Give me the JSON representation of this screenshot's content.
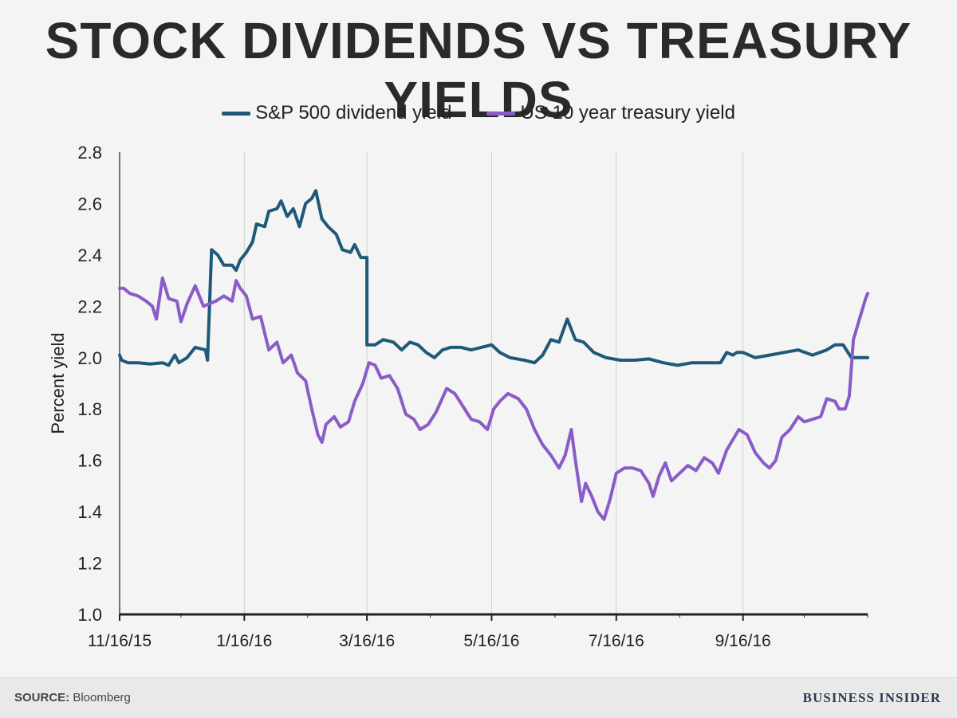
{
  "title": "STOCK DIVIDENDS VS TREASURY YIELDS",
  "footer": {
    "source_label": "SOURCE:",
    "source_value": "Bloomberg",
    "brand": "BUSINESS INSIDER"
  },
  "chart_data": {
    "type": "line",
    "title": "STOCK DIVIDENDS VS TREASURY YIELDS",
    "xlabel": "",
    "ylabel": "Percent yield",
    "ylim": [
      1.0,
      2.8
    ],
    "xlim": [
      "2015-11-16",
      "2016-11-16"
    ],
    "yticks": [
      "1.0",
      "1.2",
      "1.4",
      "1.6",
      "1.8",
      "2.0",
      "2.2",
      "2.4",
      "2.6",
      "2.8"
    ],
    "xticks": [
      {
        "date": "2015-11-16",
        "label": "11/16/15"
      },
      {
        "date": "2016-01-16",
        "label": "1/16/16"
      },
      {
        "date": "2016-03-16",
        "label": "3/16/16"
      },
      {
        "date": "2016-05-16",
        "label": "5/16/16"
      },
      {
        "date": "2016-07-16",
        "label": "7/16/16"
      },
      {
        "date": "2016-09-16",
        "label": "9/16/16"
      }
    ],
    "grid": "vertical",
    "legend_position": "top-center",
    "series": [
      {
        "name": "S&P 500 dividend yield",
        "color": "#1e5a78",
        "points": [
          [
            "2015-11-16",
            2.01
          ],
          [
            "2015-11-17",
            1.99
          ],
          [
            "2015-11-20",
            1.98
          ],
          [
            "2015-11-25",
            1.98
          ],
          [
            "2015-12-01",
            1.975
          ],
          [
            "2015-12-07",
            1.98
          ],
          [
            "2015-12-10",
            1.97
          ],
          [
            "2015-12-13",
            2.01
          ],
          [
            "2015-12-15",
            1.98
          ],
          [
            "2015-12-19",
            2.0
          ],
          [
            "2015-12-23",
            2.04
          ],
          [
            "2015-12-28",
            2.03
          ],
          [
            "2015-12-29",
            1.99
          ],
          [
            "2015-12-31",
            2.42
          ],
          [
            "2016-01-03",
            2.4
          ],
          [
            "2016-01-06",
            2.36
          ],
          [
            "2016-01-10",
            2.36
          ],
          [
            "2016-01-12",
            2.34
          ],
          [
            "2016-01-14",
            2.38
          ],
          [
            "2016-01-17",
            2.41
          ],
          [
            "2016-01-20",
            2.45
          ],
          [
            "2016-01-22",
            2.52
          ],
          [
            "2016-01-26",
            2.51
          ],
          [
            "2016-01-28",
            2.57
          ],
          [
            "2016-02-01",
            2.58
          ],
          [
            "2016-02-03",
            2.61
          ],
          [
            "2016-02-06",
            2.55
          ],
          [
            "2016-02-09",
            2.58
          ],
          [
            "2016-02-12",
            2.51
          ],
          [
            "2016-02-15",
            2.6
          ],
          [
            "2016-02-18",
            2.62
          ],
          [
            "2016-02-20",
            2.65
          ],
          [
            "2016-02-23",
            2.54
          ],
          [
            "2016-02-26",
            2.51
          ],
          [
            "2016-03-01",
            2.48
          ],
          [
            "2016-03-04",
            2.42
          ],
          [
            "2016-03-08",
            2.41
          ],
          [
            "2016-03-10",
            2.44
          ],
          [
            "2016-03-13",
            2.39
          ],
          [
            "2016-03-16",
            2.39
          ],
          [
            "2016-03-16",
            2.05
          ],
          [
            "2016-03-20",
            2.05
          ],
          [
            "2016-03-24",
            2.07
          ],
          [
            "2016-03-29",
            2.06
          ],
          [
            "2016-04-02",
            2.03
          ],
          [
            "2016-04-06",
            2.06
          ],
          [
            "2016-04-10",
            2.05
          ],
          [
            "2016-04-14",
            2.02
          ],
          [
            "2016-04-18",
            2.0
          ],
          [
            "2016-04-22",
            2.03
          ],
          [
            "2016-04-26",
            2.04
          ],
          [
            "2016-05-01",
            2.04
          ],
          [
            "2016-05-06",
            2.03
          ],
          [
            "2016-05-11",
            2.04
          ],
          [
            "2016-05-16",
            2.05
          ],
          [
            "2016-05-20",
            2.02
          ],
          [
            "2016-05-25",
            2.0
          ],
          [
            "2016-06-01",
            1.99
          ],
          [
            "2016-06-06",
            1.98
          ],
          [
            "2016-06-10",
            2.01
          ],
          [
            "2016-06-14",
            2.07
          ],
          [
            "2016-06-18",
            2.06
          ],
          [
            "2016-06-22",
            2.15
          ],
          [
            "2016-06-26",
            2.07
          ],
          [
            "2016-06-30",
            2.06
          ],
          [
            "2016-07-05",
            2.02
          ],
          [
            "2016-07-11",
            2.0
          ],
          [
            "2016-07-18",
            1.99
          ],
          [
            "2016-07-25",
            1.99
          ],
          [
            "2016-08-01",
            1.995
          ],
          [
            "2016-08-08",
            1.98
          ],
          [
            "2016-08-15",
            1.97
          ],
          [
            "2016-08-22",
            1.98
          ],
          [
            "2016-08-29",
            1.98
          ],
          [
            "2016-09-05",
            1.98
          ],
          [
            "2016-09-08",
            2.02
          ],
          [
            "2016-09-11",
            2.01
          ],
          [
            "2016-09-13",
            2.02
          ],
          [
            "2016-09-16",
            2.02
          ],
          [
            "2016-09-22",
            2.0
          ],
          [
            "2016-09-29",
            2.01
          ],
          [
            "2016-10-06",
            2.02
          ],
          [
            "2016-10-13",
            2.03
          ],
          [
            "2016-10-20",
            2.01
          ],
          [
            "2016-10-27",
            2.03
          ],
          [
            "2016-10-31",
            2.05
          ],
          [
            "2016-11-04",
            2.05
          ],
          [
            "2016-11-08",
            2.0
          ],
          [
            "2016-11-12",
            2.0
          ],
          [
            "2016-11-16",
            2.0
          ]
        ]
      },
      {
        "name": "US 10 year treasury yield",
        "color": "#8a5cc7",
        "points": [
          [
            "2015-11-16",
            2.27
          ],
          [
            "2015-11-18",
            2.27
          ],
          [
            "2015-11-21",
            2.25
          ],
          [
            "2015-11-25",
            2.24
          ],
          [
            "2015-11-29",
            2.22
          ],
          [
            "2015-12-02",
            2.2
          ],
          [
            "2015-12-04",
            2.15
          ],
          [
            "2015-12-07",
            2.31
          ],
          [
            "2015-12-10",
            2.23
          ],
          [
            "2015-12-14",
            2.22
          ],
          [
            "2015-12-16",
            2.14
          ],
          [
            "2015-12-19",
            2.21
          ],
          [
            "2015-12-23",
            2.28
          ],
          [
            "2015-12-27",
            2.2
          ],
          [
            "2016-01-02",
            2.22
          ],
          [
            "2016-01-06",
            2.24
          ],
          [
            "2016-01-10",
            2.22
          ],
          [
            "2016-01-12",
            2.3
          ],
          [
            "2016-01-14",
            2.27
          ],
          [
            "2016-01-17",
            2.24
          ],
          [
            "2016-01-20",
            2.15
          ],
          [
            "2016-01-24",
            2.16
          ],
          [
            "2016-01-28",
            2.03
          ],
          [
            "2016-02-01",
            2.06
          ],
          [
            "2016-02-04",
            1.98
          ],
          [
            "2016-02-08",
            2.01
          ],
          [
            "2016-02-11",
            1.94
          ],
          [
            "2016-02-15",
            1.91
          ],
          [
            "2016-02-18",
            1.8
          ],
          [
            "2016-02-21",
            1.7
          ],
          [
            "2016-02-23",
            1.67
          ],
          [
            "2016-02-25",
            1.74
          ],
          [
            "2016-02-29",
            1.77
          ],
          [
            "2016-03-03",
            1.73
          ],
          [
            "2016-03-07",
            1.75
          ],
          [
            "2016-03-10",
            1.83
          ],
          [
            "2016-03-14",
            1.9
          ],
          [
            "2016-03-17",
            1.98
          ],
          [
            "2016-03-20",
            1.97
          ],
          [
            "2016-03-23",
            1.92
          ],
          [
            "2016-03-27",
            1.93
          ],
          [
            "2016-03-31",
            1.88
          ],
          [
            "2016-04-04",
            1.78
          ],
          [
            "2016-04-08",
            1.76
          ],
          [
            "2016-04-11",
            1.72
          ],
          [
            "2016-04-15",
            1.74
          ],
          [
            "2016-04-19",
            1.79
          ],
          [
            "2016-04-24",
            1.88
          ],
          [
            "2016-04-28",
            1.86
          ],
          [
            "2016-05-02",
            1.81
          ],
          [
            "2016-05-06",
            1.76
          ],
          [
            "2016-05-10",
            1.75
          ],
          [
            "2016-05-14",
            1.72
          ],
          [
            "2016-05-17",
            1.8
          ],
          [
            "2016-05-20",
            1.83
          ],
          [
            "2016-05-24",
            1.86
          ],
          [
            "2016-05-29",
            1.84
          ],
          [
            "2016-06-02",
            1.8
          ],
          [
            "2016-06-06",
            1.72
          ],
          [
            "2016-06-10",
            1.66
          ],
          [
            "2016-06-14",
            1.62
          ],
          [
            "2016-06-18",
            1.57
          ],
          [
            "2016-06-21",
            1.62
          ],
          [
            "2016-06-24",
            1.72
          ],
          [
            "2016-06-26",
            1.6
          ],
          [
            "2016-06-29",
            1.44
          ],
          [
            "2016-07-01",
            1.51
          ],
          [
            "2016-07-04",
            1.46
          ],
          [
            "2016-07-07",
            1.4
          ],
          [
            "2016-07-10",
            1.37
          ],
          [
            "2016-07-13",
            1.45
          ],
          [
            "2016-07-16",
            1.55
          ],
          [
            "2016-07-20",
            1.57
          ],
          [
            "2016-07-24",
            1.57
          ],
          [
            "2016-07-28",
            1.56
          ],
          [
            "2016-08-01",
            1.51
          ],
          [
            "2016-08-03",
            1.46
          ],
          [
            "2016-08-06",
            1.54
          ],
          [
            "2016-08-09",
            1.59
          ],
          [
            "2016-08-12",
            1.52
          ],
          [
            "2016-08-16",
            1.55
          ],
          [
            "2016-08-20",
            1.58
          ],
          [
            "2016-08-24",
            1.56
          ],
          [
            "2016-08-28",
            1.61
          ],
          [
            "2016-09-01",
            1.59
          ],
          [
            "2016-09-04",
            1.55
          ],
          [
            "2016-09-08",
            1.64
          ],
          [
            "2016-09-11",
            1.68
          ],
          [
            "2016-09-14",
            1.72
          ],
          [
            "2016-09-18",
            1.7
          ],
          [
            "2016-09-22",
            1.63
          ],
          [
            "2016-09-26",
            1.59
          ],
          [
            "2016-09-29",
            1.57
          ],
          [
            "2016-10-02",
            1.6
          ],
          [
            "2016-10-05",
            1.69
          ],
          [
            "2016-10-09",
            1.72
          ],
          [
            "2016-10-13",
            1.77
          ],
          [
            "2016-10-16",
            1.75
          ],
          [
            "2016-10-20",
            1.76
          ],
          [
            "2016-10-24",
            1.77
          ],
          [
            "2016-10-27",
            1.84
          ],
          [
            "2016-10-31",
            1.83
          ],
          [
            "2016-11-02",
            1.8
          ],
          [
            "2016-11-05",
            1.8
          ],
          [
            "2016-11-07",
            1.85
          ],
          [
            "2016-11-09",
            2.07
          ],
          [
            "2016-11-12",
            2.15
          ],
          [
            "2016-11-15",
            2.23
          ],
          [
            "2016-11-16",
            2.25
          ]
        ]
      }
    ]
  }
}
